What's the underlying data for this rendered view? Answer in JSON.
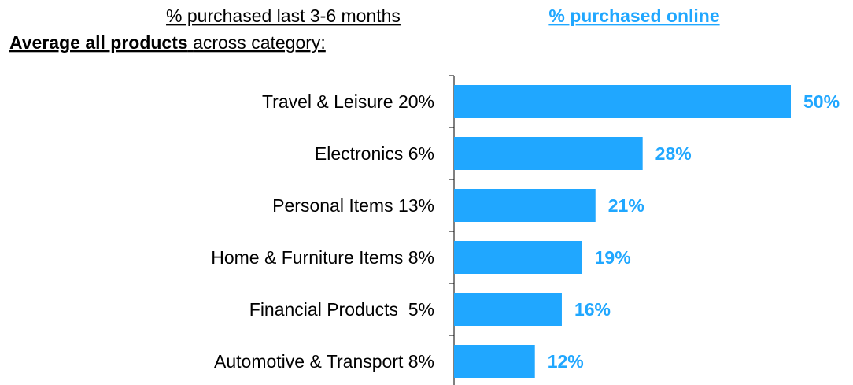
{
  "chart_data": {
    "type": "barh",
    "left_header": "% purchased last 3-6 months",
    "right_header": "% purchased online",
    "subtitle_bold": "Average all products",
    "subtitle": "across category:",
    "categories": [
      "Travel & Leisure 20%",
      "Electronics 6%",
      "Personal Items 13%",
      "Home & Furniture Items 8%",
      "Financial Products  5%",
      "Automotive & Transport 8%"
    ],
    "values": [
      50,
      28,
      21,
      19,
      16,
      12
    ],
    "value_labels": [
      "50%",
      "28%",
      "21%",
      "19%",
      "16%",
      "12%"
    ],
    "color": "#20a7ff",
    "xlim": [
      0,
      50
    ]
  }
}
